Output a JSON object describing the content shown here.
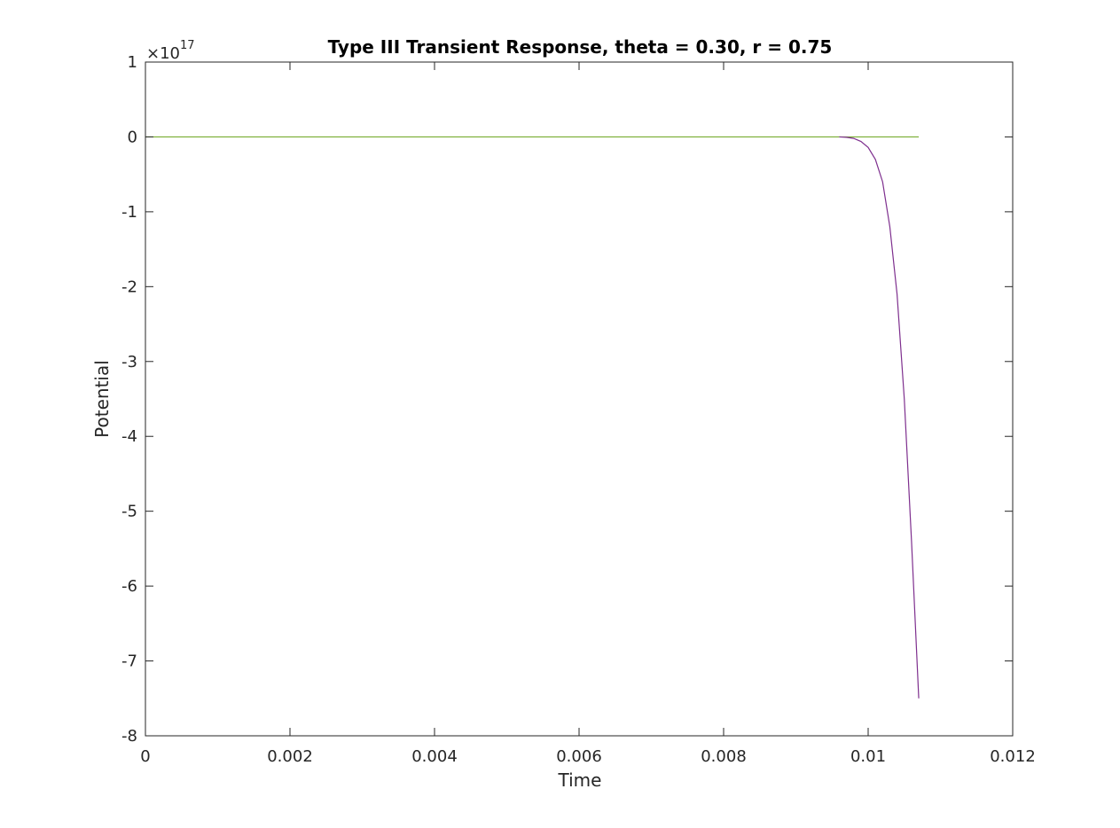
{
  "chart_data": {
    "type": "line",
    "title": "Type III Transient Response, theta = 0.30, r = 0.75",
    "xlabel": "Time",
    "ylabel": "Potential",
    "xlim": [
      0,
      0.012
    ],
    "ylim": [
      -8,
      1
    ],
    "y_scale_exponent": {
      "base": "×10",
      "power": "17"
    },
    "xticks": [
      0,
      0.002,
      0.004,
      0.006,
      0.008,
      0.01,
      0.012
    ],
    "xtick_labels": [
      "0",
      "0.002",
      "0.004",
      "0.006",
      "0.008",
      "0.01",
      "0.012"
    ],
    "yticks": [
      1,
      0,
      -1,
      -2,
      -3,
      -4,
      -5,
      -6,
      -7,
      -8
    ],
    "ytick_labels": [
      "1",
      "0",
      "-1",
      "-2",
      "-3",
      "-4",
      "-5",
      "-6",
      "-7",
      "-8"
    ],
    "grid": false,
    "box": true,
    "series": [
      {
        "color": "#77ac30",
        "x": [
          0,
          0.0107
        ],
        "y": [
          0,
          0
        ]
      },
      {
        "color": "#7e2f8e",
        "x": [
          0.0096,
          0.0097,
          0.0098,
          0.0099,
          0.01,
          0.0101,
          0.0102,
          0.0103,
          0.0104,
          0.0105,
          0.0106,
          0.0107
        ],
        "y": [
          0,
          -0.005,
          -0.02,
          -0.06,
          -0.14,
          -0.3,
          -0.6,
          -1.2,
          -2.1,
          -3.5,
          -5.4,
          -7.5
        ]
      }
    ]
  }
}
